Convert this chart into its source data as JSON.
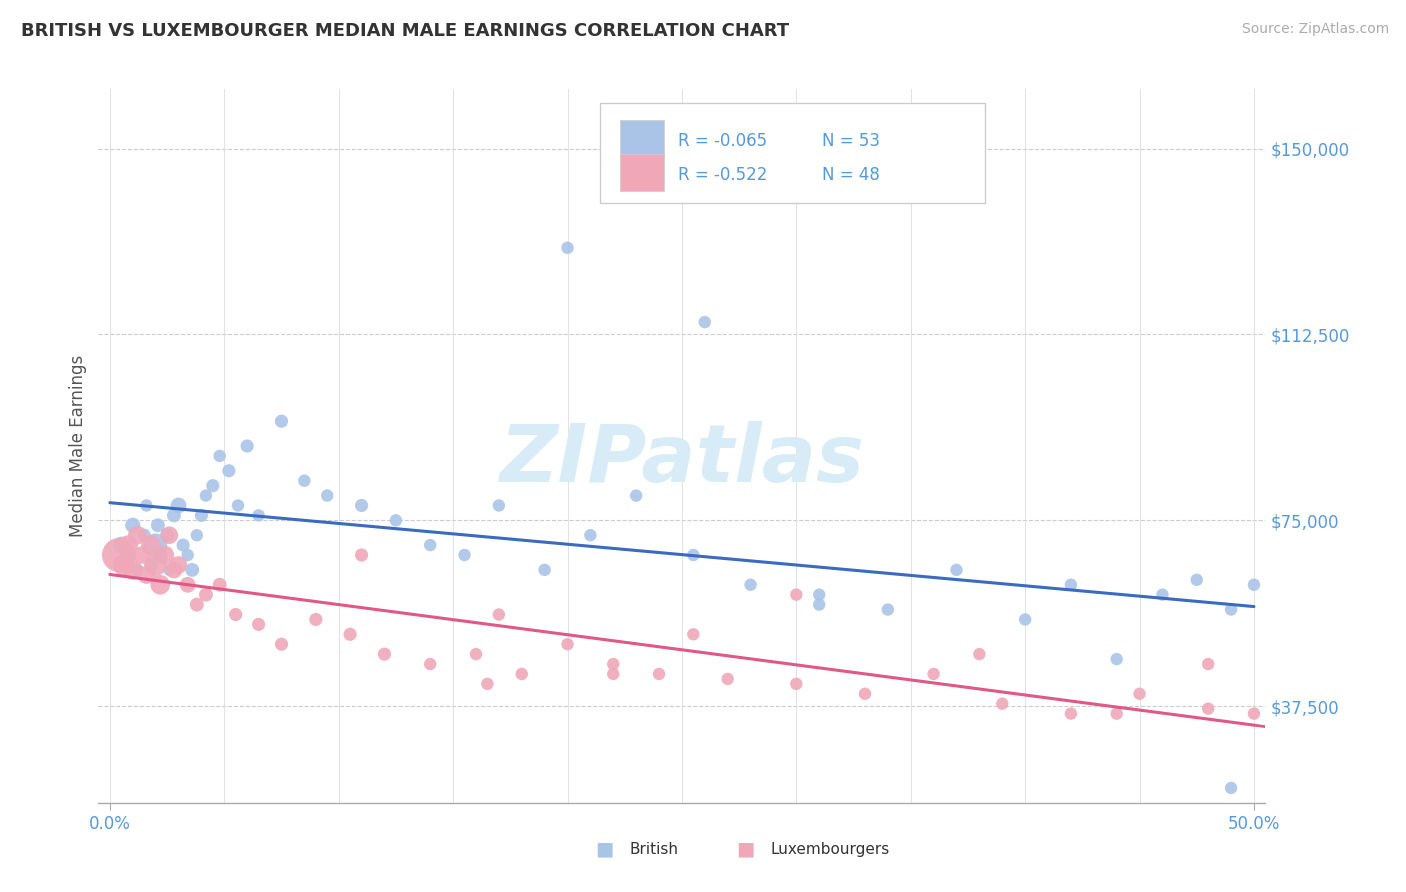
{
  "title": "BRITISH VS LUXEMBOURGER MEDIAN MALE EARNINGS CORRELATION CHART",
  "source": "Source: ZipAtlas.com",
  "ylabel": "Median Male Earnings",
  "xlim": [
    -0.005,
    0.505
  ],
  "ylim": [
    18000,
    162000
  ],
  "yticks": [
    37500,
    75000,
    112500,
    150000
  ],
  "ytick_labels": [
    "$37,500",
    "$75,000",
    "$112,500",
    "$150,000"
  ],
  "xtick_labels": [
    "0.0%",
    "50.0%"
  ],
  "british_color": "#aac4e8",
  "luxembourger_color": "#f0a8b8",
  "british_line_color": "#3a6bbf",
  "luxembourger_line_color": "#e05888",
  "tick_color": "#5599dd",
  "watermark_color": "#d8ecf8",
  "british_x": [
    0.005,
    0.008,
    0.01,
    0.012,
    0.015,
    0.016,
    0.018,
    0.02,
    0.021,
    0.022,
    0.025,
    0.026,
    0.028,
    0.03,
    0.032,
    0.034,
    0.036,
    0.038,
    0.04,
    0.042,
    0.045,
    0.048,
    0.052,
    0.056,
    0.06,
    0.065,
    0.075,
    0.085,
    0.095,
    0.11,
    0.125,
    0.14,
    0.155,
    0.17,
    0.19,
    0.21,
    0.23,
    0.255,
    0.28,
    0.31,
    0.34,
    0.37,
    0.4,
    0.42,
    0.44,
    0.46,
    0.475,
    0.49,
    0.5,
    0.2,
    0.31,
    0.49,
    0.26
  ],
  "british_y": [
    70000,
    68000,
    74000,
    65000,
    72000,
    78000,
    66000,
    70000,
    74000,
    68000,
    72000,
    65000,
    76000,
    78000,
    70000,
    68000,
    65000,
    72000,
    76000,
    80000,
    82000,
    88000,
    85000,
    78000,
    90000,
    76000,
    95000,
    83000,
    80000,
    78000,
    75000,
    70000,
    68000,
    78000,
    65000,
    72000,
    80000,
    68000,
    62000,
    60000,
    57000,
    65000,
    55000,
    62000,
    47000,
    60000,
    63000,
    57000,
    62000,
    130000,
    58000,
    21000,
    115000
  ],
  "british_sizes": [
    150,
    100,
    120,
    80,
    90,
    80,
    100,
    280,
    100,
    120,
    100,
    80,
    100,
    130,
    90,
    80,
    100,
    80,
    90,
    80,
    90,
    80,
    90,
    80,
    90,
    80,
    90,
    80,
    80,
    90,
    80,
    80,
    80,
    80,
    80,
    80,
    80,
    80,
    80,
    80,
    80,
    80,
    80,
    80,
    80,
    80,
    80,
    80,
    80,
    80,
    80,
    80,
    80
  ],
  "luxembourger_x": [
    0.004,
    0.006,
    0.008,
    0.01,
    0.012,
    0.014,
    0.016,
    0.018,
    0.02,
    0.022,
    0.024,
    0.026,
    0.028,
    0.03,
    0.034,
    0.038,
    0.042,
    0.048,
    0.055,
    0.065,
    0.075,
    0.09,
    0.105,
    0.12,
    0.14,
    0.16,
    0.18,
    0.2,
    0.22,
    0.24,
    0.27,
    0.3,
    0.33,
    0.36,
    0.39,
    0.42,
    0.45,
    0.48,
    0.5,
    0.11,
    0.255,
    0.48,
    0.38,
    0.3,
    0.17,
    0.22,
    0.44,
    0.165
  ],
  "luxembourger_y": [
    68000,
    66000,
    70000,
    65000,
    72000,
    68000,
    64000,
    70000,
    66000,
    62000,
    68000,
    72000,
    65000,
    66000,
    62000,
    58000,
    60000,
    62000,
    56000,
    54000,
    50000,
    55000,
    52000,
    48000,
    46000,
    48000,
    44000,
    50000,
    46000,
    44000,
    43000,
    42000,
    40000,
    44000,
    38000,
    36000,
    40000,
    37000,
    36000,
    68000,
    52000,
    46000,
    48000,
    60000,
    56000,
    44000,
    36000,
    42000
  ],
  "luxembourger_sizes": [
    600,
    250,
    200,
    200,
    180,
    160,
    170,
    200,
    250,
    200,
    180,
    160,
    150,
    160,
    130,
    100,
    100,
    100,
    90,
    90,
    90,
    90,
    90,
    90,
    80,
    80,
    80,
    80,
    80,
    80,
    80,
    80,
    80,
    80,
    80,
    80,
    80,
    80,
    80,
    90,
    80,
    80,
    80,
    80,
    80,
    80,
    80,
    80
  ]
}
